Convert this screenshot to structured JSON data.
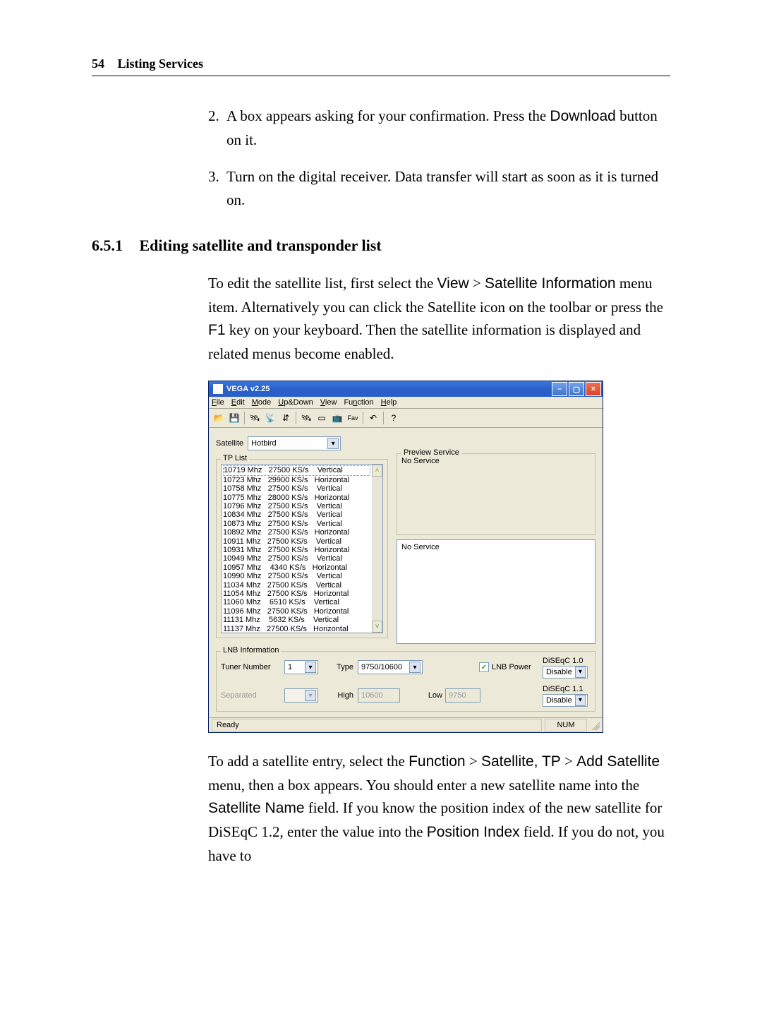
{
  "header": {
    "page_number": "54",
    "chapter": "Listing Services"
  },
  "steps": {
    "s2": {
      "num": "2.",
      "text_a": "A box appears asking for your confirmation. Press the ",
      "btn": "Download",
      "text_b": " button on it."
    },
    "s3": {
      "num": "3.",
      "text": "Turn on the digital receiver. Data transfer will start as soon as it is turned on."
    }
  },
  "section": {
    "num": "6.5.1",
    "title": "Editing satellite and transponder list"
  },
  "para1": {
    "a": "To edit the satellite list, first select the ",
    "menu1": "View",
    "gt1": " > ",
    "menu2": "Satellite Information",
    "b": " menu item. Alternatively you can click the Satellite icon on the toolbar or press the ",
    "key": "F1",
    "c": " key on your keyboard. Then the satellite information is displayed and related menus become enabled."
  },
  "win": {
    "title": "VEGA v2.25",
    "menu": [
      "File",
      "Edit",
      "Mode",
      "Up&Down",
      "View",
      "Function",
      "Help"
    ],
    "menu_ul": [
      "F",
      "E",
      "M",
      "U",
      "V",
      "n",
      "H"
    ],
    "toolbar_icons": [
      "📂",
      "💾",
      "|",
      "🛰",
      "📡",
      "⇵",
      "|",
      "🛰",
      "▭",
      "📺",
      "Fav",
      "|",
      "↶",
      "|",
      "?"
    ],
    "satellite_label": "Satellite",
    "satellite_value": "Hotbird",
    "tplist_label": "TP List",
    "tp_rows": [
      "10719 Mhz   27500 KS/s    Vertical",
      "10723 Mhz   29900 KS/s   Horizontal",
      "10758 Mhz   27500 KS/s    Vertical",
      "10775 Mhz   28000 KS/s   Horizontal",
      "10796 Mhz   27500 KS/s    Vertical",
      "10834 Mhz   27500 KS/s    Vertical",
      "10873 Mhz   27500 KS/s    Vertical",
      "10892 Mhz   27500 KS/s   Horizontal",
      "10911 Mhz   27500 KS/s    Vertical",
      "10931 Mhz   27500 KS/s   Horizontal",
      "10949 Mhz   27500 KS/s    Vertical",
      "10957 Mhz    4340 KS/s   Horizontal",
      "10990 Mhz   27500 KS/s    Vertical",
      "11034 Mhz   27500 KS/s    Vertical",
      "11054 Mhz   27500 KS/s   Horizontal",
      "11060 Mhz    6510 KS/s    Vertical",
      "11096 Mhz   27500 KS/s   Horizontal",
      "11131 Mhz    5632 KS/s    Vertical",
      "11137 Mhz   27500 KS/s   Horizontal"
    ],
    "preview_label": "Preview Service",
    "preview_top": "No Service",
    "preview_bot": "No Service",
    "lnb_label": "LNB Information",
    "tuner_label": "Tuner Number",
    "tuner_value": "1",
    "type_label": "Type",
    "type_value": "9750/10600",
    "separated_label": "Separated",
    "high_label": "High",
    "high_value": "10600",
    "low_label": "Low",
    "low_value": "9750",
    "lnbpower_label": "LNB Power",
    "diseqc10": "DiSEqC 1.0",
    "diseqc10_value": "Disable",
    "diseqc11": "DiSEqC 1.1",
    "diseqc11_value": "Disable",
    "status_ready": "Ready",
    "status_num": "NUM"
  },
  "para2": {
    "a": "To add a satellite entry, select the ",
    "m1": "Function",
    "gt1": " > ",
    "m2": "Satellite, TP",
    "gt2": " > ",
    "m3": "Add Satellite",
    "b": " menu, then a box appears. You should enter a new satellite name into the ",
    "f1": "Satellite Name",
    "c": " field. If you know the position index of the new satellite for DiSEqC 1.2, enter the value into the ",
    "f2": "Position Index",
    "d": " field. If you do not, you have to"
  }
}
